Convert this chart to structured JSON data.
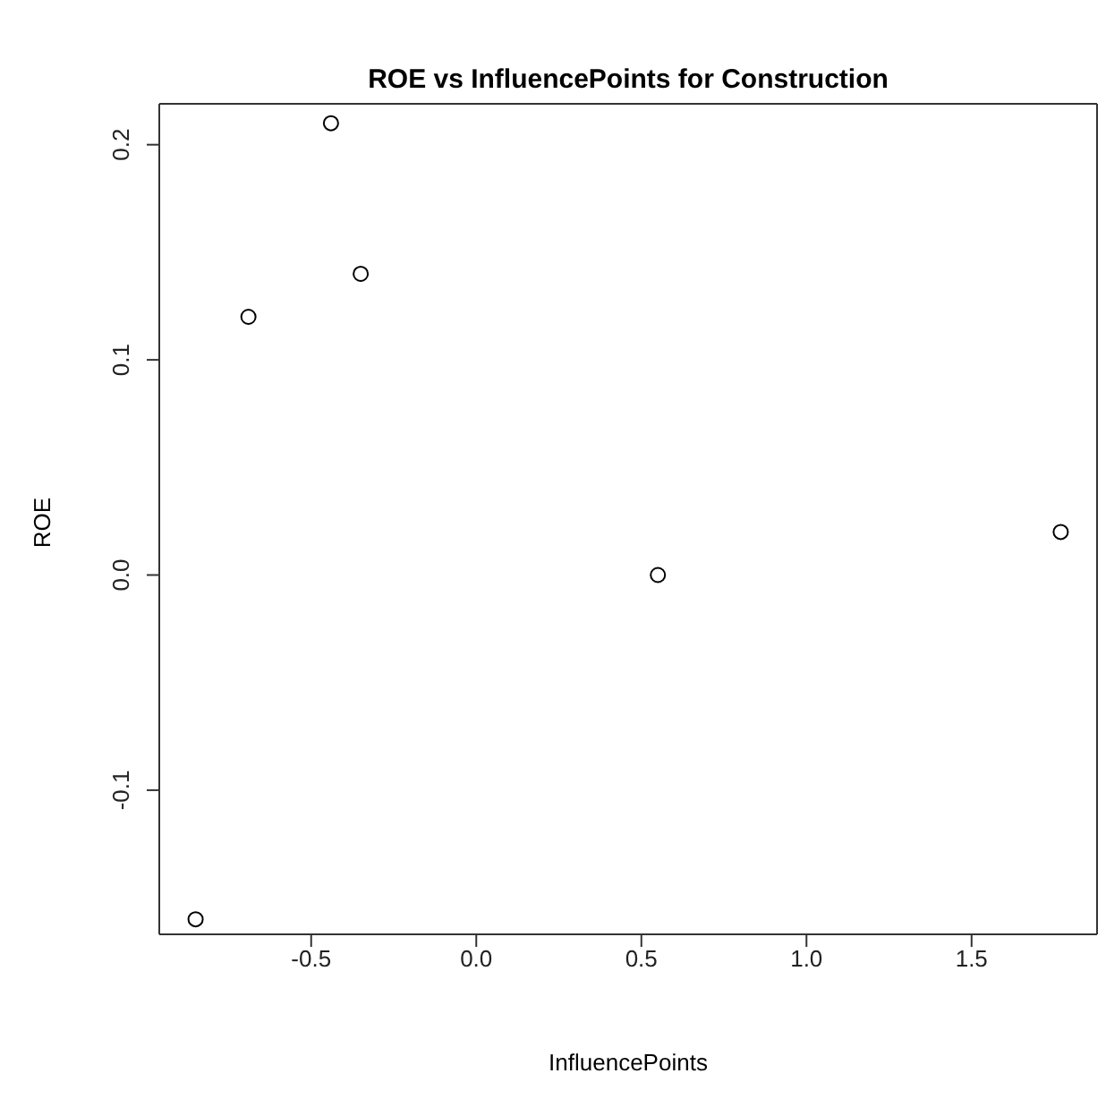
{
  "chart_data": {
    "type": "scatter",
    "title": "ROE vs InfluencePoints for Construction",
    "xlabel": "InfluencePoints",
    "ylabel": "ROE",
    "x": [
      -0.85,
      -0.69,
      -0.44,
      -0.35,
      0.55,
      1.77
    ],
    "values": [
      -0.16,
      0.12,
      0.21,
      0.14,
      0.0,
      0.02
    ],
    "color": "#000000",
    "marker": "circle",
    "xlim": [
      -0.96,
      1.88
    ],
    "xticks": [
      -0.5,
      {
        "value": 0,
        "label": "0.0"
      },
      0.5,
      {
        "value": 1,
        "label": "1.0"
      },
      1.5
    ],
    "ylim": [
      -0.167,
      0.219
    ],
    "yticks": [
      -0.1,
      {
        "value": 0,
        "label": "0.0"
      },
      0.1,
      0.2
    ]
  }
}
